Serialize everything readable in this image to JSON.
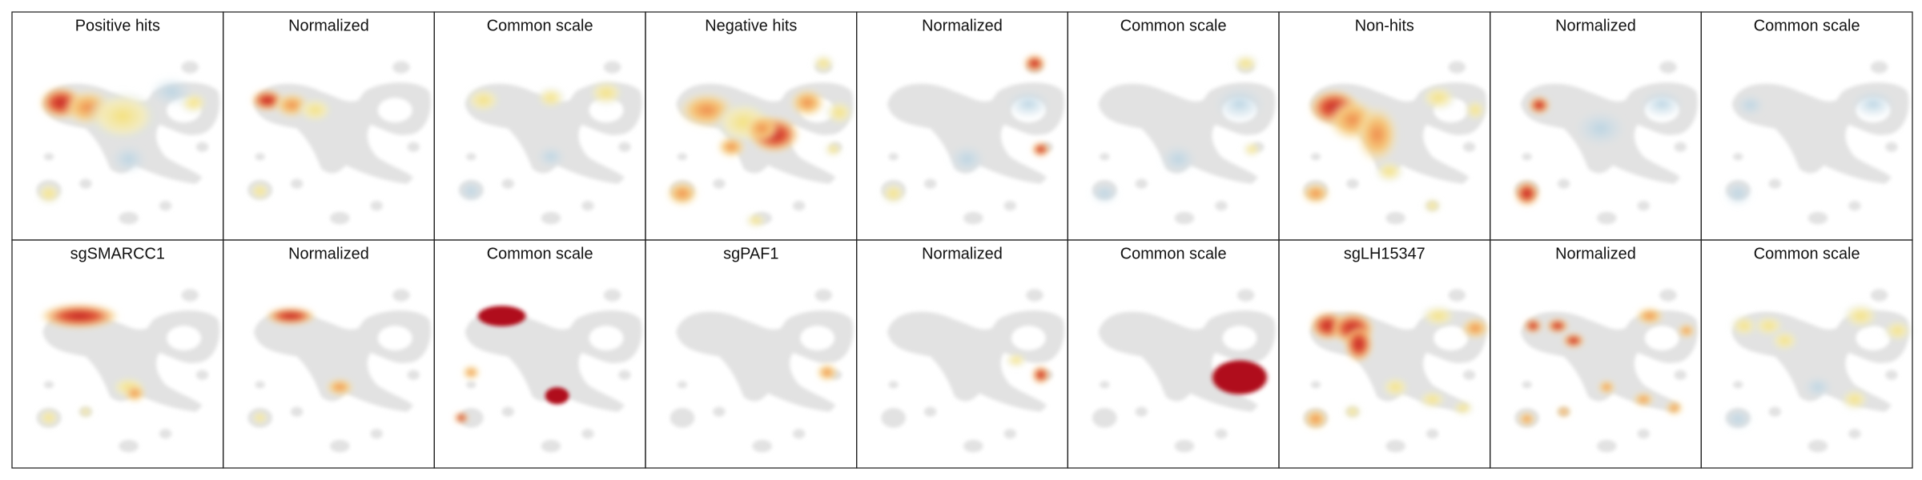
{
  "rows": [
    [
      "Positive hits",
      "Normalized",
      "Common scale",
      "Negative hits",
      "Normalized",
      "Common scale",
      "Non-hits",
      "Normalized",
      "Common scale"
    ],
    [
      "sgSMARCC1",
      "Normalized",
      "Common scale",
      "sgPAF1",
      "Normalized",
      "Common scale",
      "sgLH15347",
      "Normalized",
      "Common scale"
    ]
  ]
}
